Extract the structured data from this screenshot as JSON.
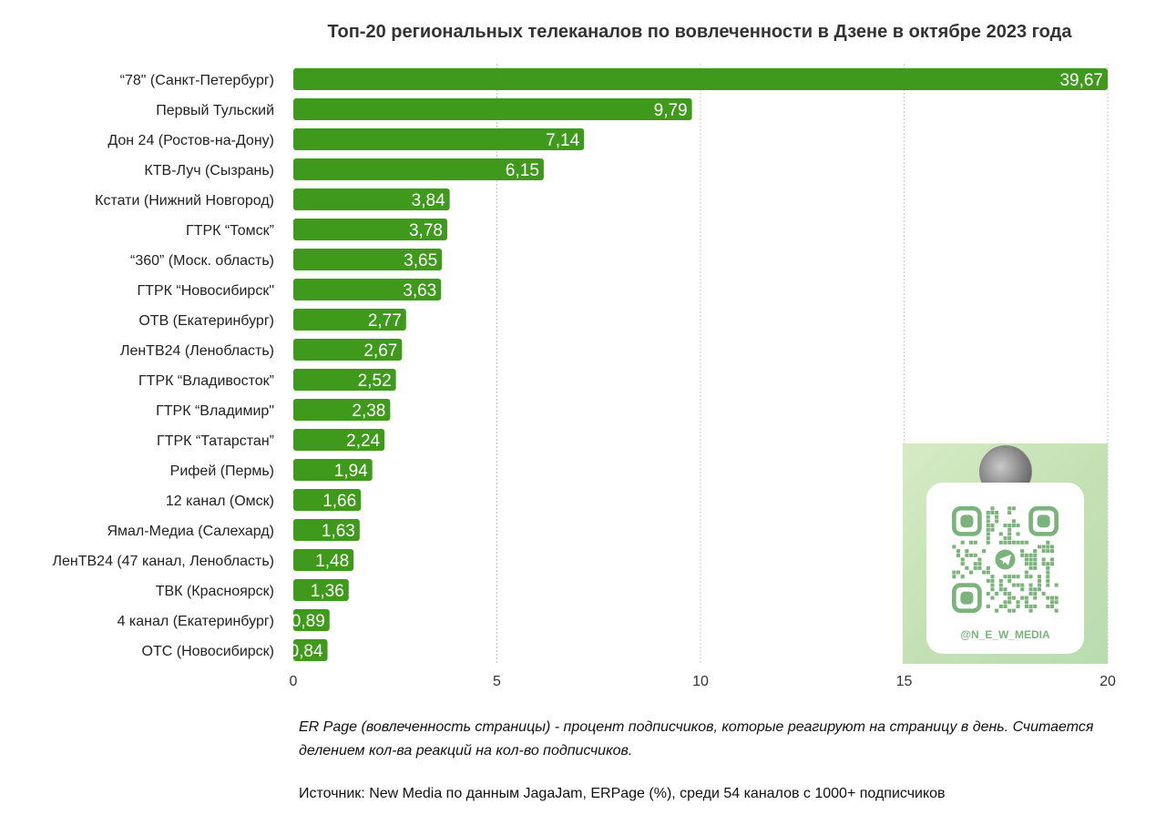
{
  "chart_data": {
    "type": "bar",
    "orientation": "horizontal",
    "title": "Топ-20 региональных телеканалов по вовлеченности в Дзене в октябре 2023 года",
    "xlabel": "",
    "ylabel": "",
    "xlim": [
      0,
      20
    ],
    "ticks": [
      "0",
      "5",
      "10",
      "15",
      "20"
    ],
    "grid": "vertical dotted",
    "bar_color": "#3f9a1c",
    "categories": [
      "“78\" (Санкт-Петербург)",
      "Первый Тульский",
      "Дон 24 (Ростов-на-Дону)",
      "КТВ-Луч (Сызрань)",
      "Кстати (Нижний Новгород)",
      "ГТРК “Томск”",
      "“360” (Моск. область)",
      "ГТРК “Новосибирск\"",
      "ОТВ (Екатеринбург)",
      "ЛенТВ24 (Ленобласть)",
      "ГТРК “Владивосток”",
      "ГТРК “Владимир\"",
      "ГТРК “Татарстан”",
      "Рифей (Пермь)",
      "12 канал (Омск)",
      "Ямал-Медиа (Салехард)",
      "ЛенТВ24 (47 канал, Ленобласть)",
      "ТВК (Красноярск)",
      "4 канал (Екатеринбург)",
      "ОТС (Новосибирск)"
    ],
    "values": [
      39.67,
      9.79,
      7.14,
      6.15,
      3.84,
      3.78,
      3.65,
      3.63,
      2.77,
      2.67,
      2.52,
      2.38,
      2.24,
      1.94,
      1.66,
      1.63,
      1.48,
      1.36,
      0.89,
      0.84
    ],
    "value_labels": [
      "39,67",
      "9,79",
      "7,14",
      "6,15",
      "3,84",
      "3,78",
      "3,65",
      "3,63",
      "2,77",
      "2,67",
      "2,52",
      "2,38",
      "2,24",
      "1,94",
      "1,66",
      "1,63",
      "1,48",
      "1,36",
      "0,89",
      "0,84"
    ]
  },
  "qr_widget": {
    "handle": "@N_E_W_MEDIA",
    "avatar_icon": "new-media-logo-icon",
    "center_icon": "telegram-icon",
    "accent_color": "#7cb37c"
  },
  "notes": {
    "er_definition": "ER Page (вовлеченность страницы) - процент подписчиков, которые реагируют на страницу в день. Считается делением кол-ва реакций на кол-во подписчиков.",
    "source": "Источник: New Media по данным JagaJam, ERPage (%), среди 54 каналов с 1000+ подписчиков"
  }
}
